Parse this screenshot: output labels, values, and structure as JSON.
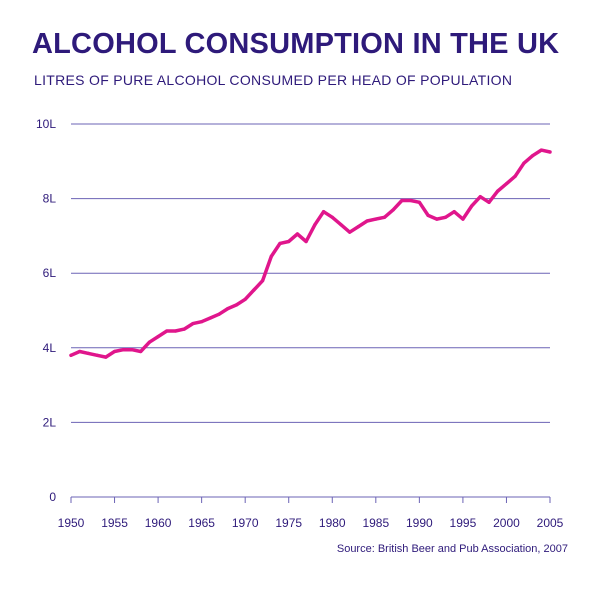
{
  "title": "ALCOHOL CONSUMPTION IN THE UK",
  "subtitle": "LITRES OF PURE ALCOHOL CONSUMED PER HEAD OF POPULATION",
  "source": "Source: British Beer and Pub Association, 2007",
  "colors": {
    "text": "#2e1a7a",
    "grid": "#6b63b5",
    "line": "#e0168c"
  },
  "chart_data": {
    "type": "line",
    "title": "ALCOHOL CONSUMPTION IN THE UK",
    "subtitle": "LITRES OF PURE ALCOHOL CONSUMED PER HEAD OF POPULATION",
    "xlabel": "",
    "ylabel": "",
    "xlim": [
      1950,
      2005
    ],
    "ylim": [
      0,
      10
    ],
    "grid": true,
    "x_ticks": [
      1950,
      1955,
      1960,
      1965,
      1970,
      1975,
      1980,
      1985,
      1990,
      1995,
      2000,
      2005
    ],
    "x_tick_labels": [
      "1950",
      "1955",
      "1960",
      "1965",
      "1970",
      "1975",
      "1980",
      "1985",
      "1990",
      "1995",
      "2000",
      "2005"
    ],
    "y_ticks": [
      0,
      2,
      4,
      6,
      8,
      10
    ],
    "y_tick_labels": [
      "0",
      "2L",
      "4L",
      "6L",
      "8L",
      "10L"
    ],
    "series": [
      {
        "x": [
          1950,
          1951,
          1952,
          1953,
          1954,
          1955,
          1956,
          1957,
          1958,
          1959,
          1960,
          1961,
          1962,
          1963,
          1964,
          1965,
          1966,
          1967,
          1968,
          1969,
          1970,
          1971,
          1972,
          1973,
          1974,
          1975,
          1976,
          1977,
          1978,
          1979,
          1980,
          1981,
          1982,
          1983,
          1984,
          1985,
          1986,
          1987,
          1988,
          1989,
          1990,
          1991,
          1992,
          1993,
          1994,
          1995,
          1996,
          1997,
          1998,
          1999,
          2000,
          2001,
          2002,
          2003,
          2004,
          2005
        ],
        "values": [
          3.8,
          3.9,
          3.85,
          3.8,
          3.75,
          3.9,
          3.95,
          3.95,
          3.9,
          4.15,
          4.3,
          4.45,
          4.45,
          4.5,
          4.65,
          4.7,
          4.8,
          4.9,
          5.05,
          5.15,
          5.3,
          5.55,
          5.8,
          6.45,
          6.8,
          6.85,
          7.05,
          6.85,
          7.3,
          7.65,
          7.5,
          7.3,
          7.1,
          7.25,
          7.4,
          7.45,
          7.5,
          7.7,
          7.95,
          7.95,
          7.9,
          7.55,
          7.45,
          7.5,
          7.65,
          7.45,
          7.8,
          8.05,
          7.9,
          8.2,
          8.4,
          8.6,
          8.95,
          9.15,
          9.3,
          9.25
        ]
      }
    ]
  }
}
